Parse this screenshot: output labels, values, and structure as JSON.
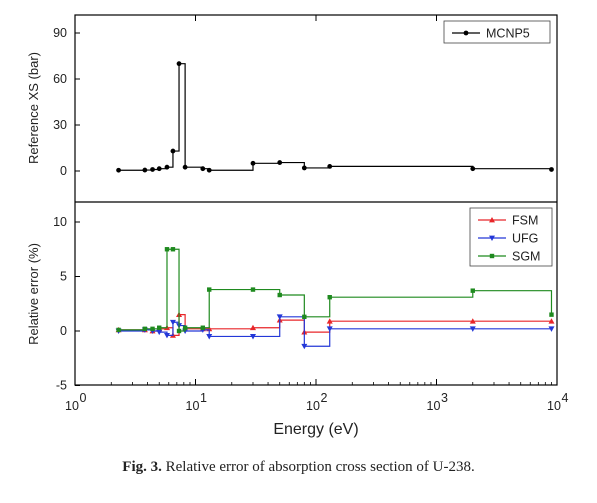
{
  "chart_data": [
    {
      "type": "line",
      "xscale": "log",
      "xlim": [
        1,
        10000
      ],
      "ylim": [
        -10,
        95
      ],
      "yticks": [
        0,
        30,
        60,
        90
      ],
      "ylabel": "Reference XS (bar)",
      "legend_position": "top-right",
      "grid": false,
      "series": [
        {
          "name": "MCNP5",
          "color": "#000000",
          "marker": "circle",
          "x": [
            2.3,
            3.8,
            4.4,
            5.0,
            5.8,
            6.5,
            7.3,
            8.2,
            11.5,
            13.0,
            30,
            50,
            80,
            130,
            2000,
            9000
          ],
          "y": [
            0.5,
            0.6,
            1.0,
            1.5,
            2.5,
            13,
            70,
            2.5,
            1.5,
            0.5,
            5,
            5.5,
            2.0,
            3.0,
            1.5,
            1.0
          ]
        }
      ]
    },
    {
      "type": "line",
      "xscale": "log",
      "xlim": [
        1,
        10000
      ],
      "ylim": [
        -5,
        12
      ],
      "yticks": [
        -5,
        0,
        5,
        10
      ],
      "xticks": [
        "10^0",
        "10^1",
        "10^2",
        "10^3",
        "10^4"
      ],
      "xlabel": "Energy (eV)",
      "ylabel": "Relative error (%)",
      "legend_position": "top-right",
      "grid": false,
      "series": [
        {
          "name": "FSM",
          "color": "#e8262a",
          "marker": "triangle-up",
          "x": [
            2.3,
            3.8,
            4.4,
            5.0,
            5.8,
            6.5,
            7.3,
            8.2,
            11.5,
            13.0,
            30,
            50,
            80,
            130,
            2000,
            9000
          ],
          "y": [
            0.1,
            0.1,
            0.0,
            0.2,
            0.3,
            -0.4,
            1.5,
            0.2,
            0.2,
            0.2,
            0.3,
            1.0,
            -0.1,
            0.9,
            0.9,
            0.9
          ]
        },
        {
          "name": "UFG",
          "color": "#2438d8",
          "marker": "triangle-down",
          "x": [
            2.3,
            3.8,
            4.4,
            5.0,
            5.8,
            6.5,
            7.3,
            8.2,
            11.5,
            13.0,
            30,
            50,
            80,
            130,
            2000,
            9000
          ],
          "y": [
            0.0,
            0.1,
            0.0,
            -0.1,
            -0.4,
            0.8,
            0.5,
            0.0,
            0.1,
            -0.5,
            -0.5,
            1.3,
            -1.4,
            0.2,
            0.2,
            0.2
          ]
        },
        {
          "name": "SGM",
          "color": "#1f8a1f",
          "marker": "square",
          "x": [
            2.3,
            3.8,
            4.4,
            5.0,
            5.8,
            6.5,
            7.3,
            8.2,
            11.5,
            13.0,
            30,
            50,
            80,
            130,
            2000,
            9000
          ],
          "y": [
            0.1,
            0.2,
            0.2,
            0.3,
            7.5,
            7.5,
            0.0,
            0.3,
            0.3,
            3.8,
            3.8,
            3.3,
            1.3,
            3.1,
            3.7,
            1.5
          ]
        }
      ]
    }
  ],
  "caption": {
    "label": "Fig. 3.",
    "text": "Relative error of absorption cross section of U-238."
  }
}
